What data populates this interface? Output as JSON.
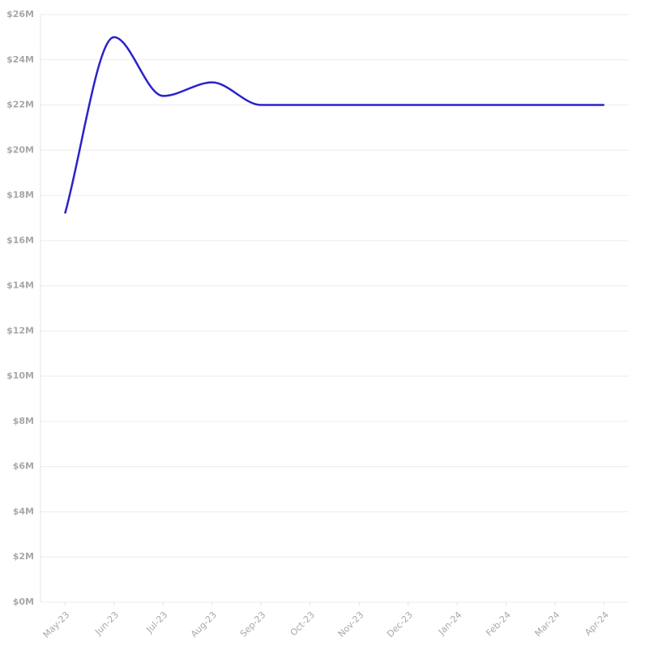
{
  "chart_data": {
    "type": "line",
    "categories": [
      "May-23",
      "Jun-23",
      "Jul-23",
      "Aug-23",
      "Sep-23",
      "Oct-23",
      "Nov-23",
      "Dec-23",
      "Jan-24",
      "Feb-24",
      "Mar-24",
      "Apr-24"
    ],
    "values": [
      17200000,
      25000000,
      22400000,
      23000000,
      22000000,
      22000000,
      22000000,
      22000000,
      22000000,
      22000000,
      22000000,
      22000000
    ],
    "color": "#2b22c9",
    "ylim": [
      0,
      26000000
    ],
    "yticks": [
      {
        "value": 0,
        "label": "$0M"
      },
      {
        "value": 2000000,
        "label": "$2M"
      },
      {
        "value": 4000000,
        "label": "$4M"
      },
      {
        "value": 6000000,
        "label": "$6M"
      },
      {
        "value": 8000000,
        "label": "$8M"
      },
      {
        "value": 10000000,
        "label": "$10M"
      },
      {
        "value": 12000000,
        "label": "$12M"
      },
      {
        "value": 14000000,
        "label": "$14M"
      },
      {
        "value": 16000000,
        "label": "$16M"
      },
      {
        "value": 18000000,
        "label": "$18M"
      },
      {
        "value": 20000000,
        "label": "$20M"
      },
      {
        "value": 22000000,
        "label": "$22M"
      },
      {
        "value": 24000000,
        "label": "$24M"
      },
      {
        "value": 26000000,
        "label": "$26M"
      }
    ],
    "grid": true
  }
}
